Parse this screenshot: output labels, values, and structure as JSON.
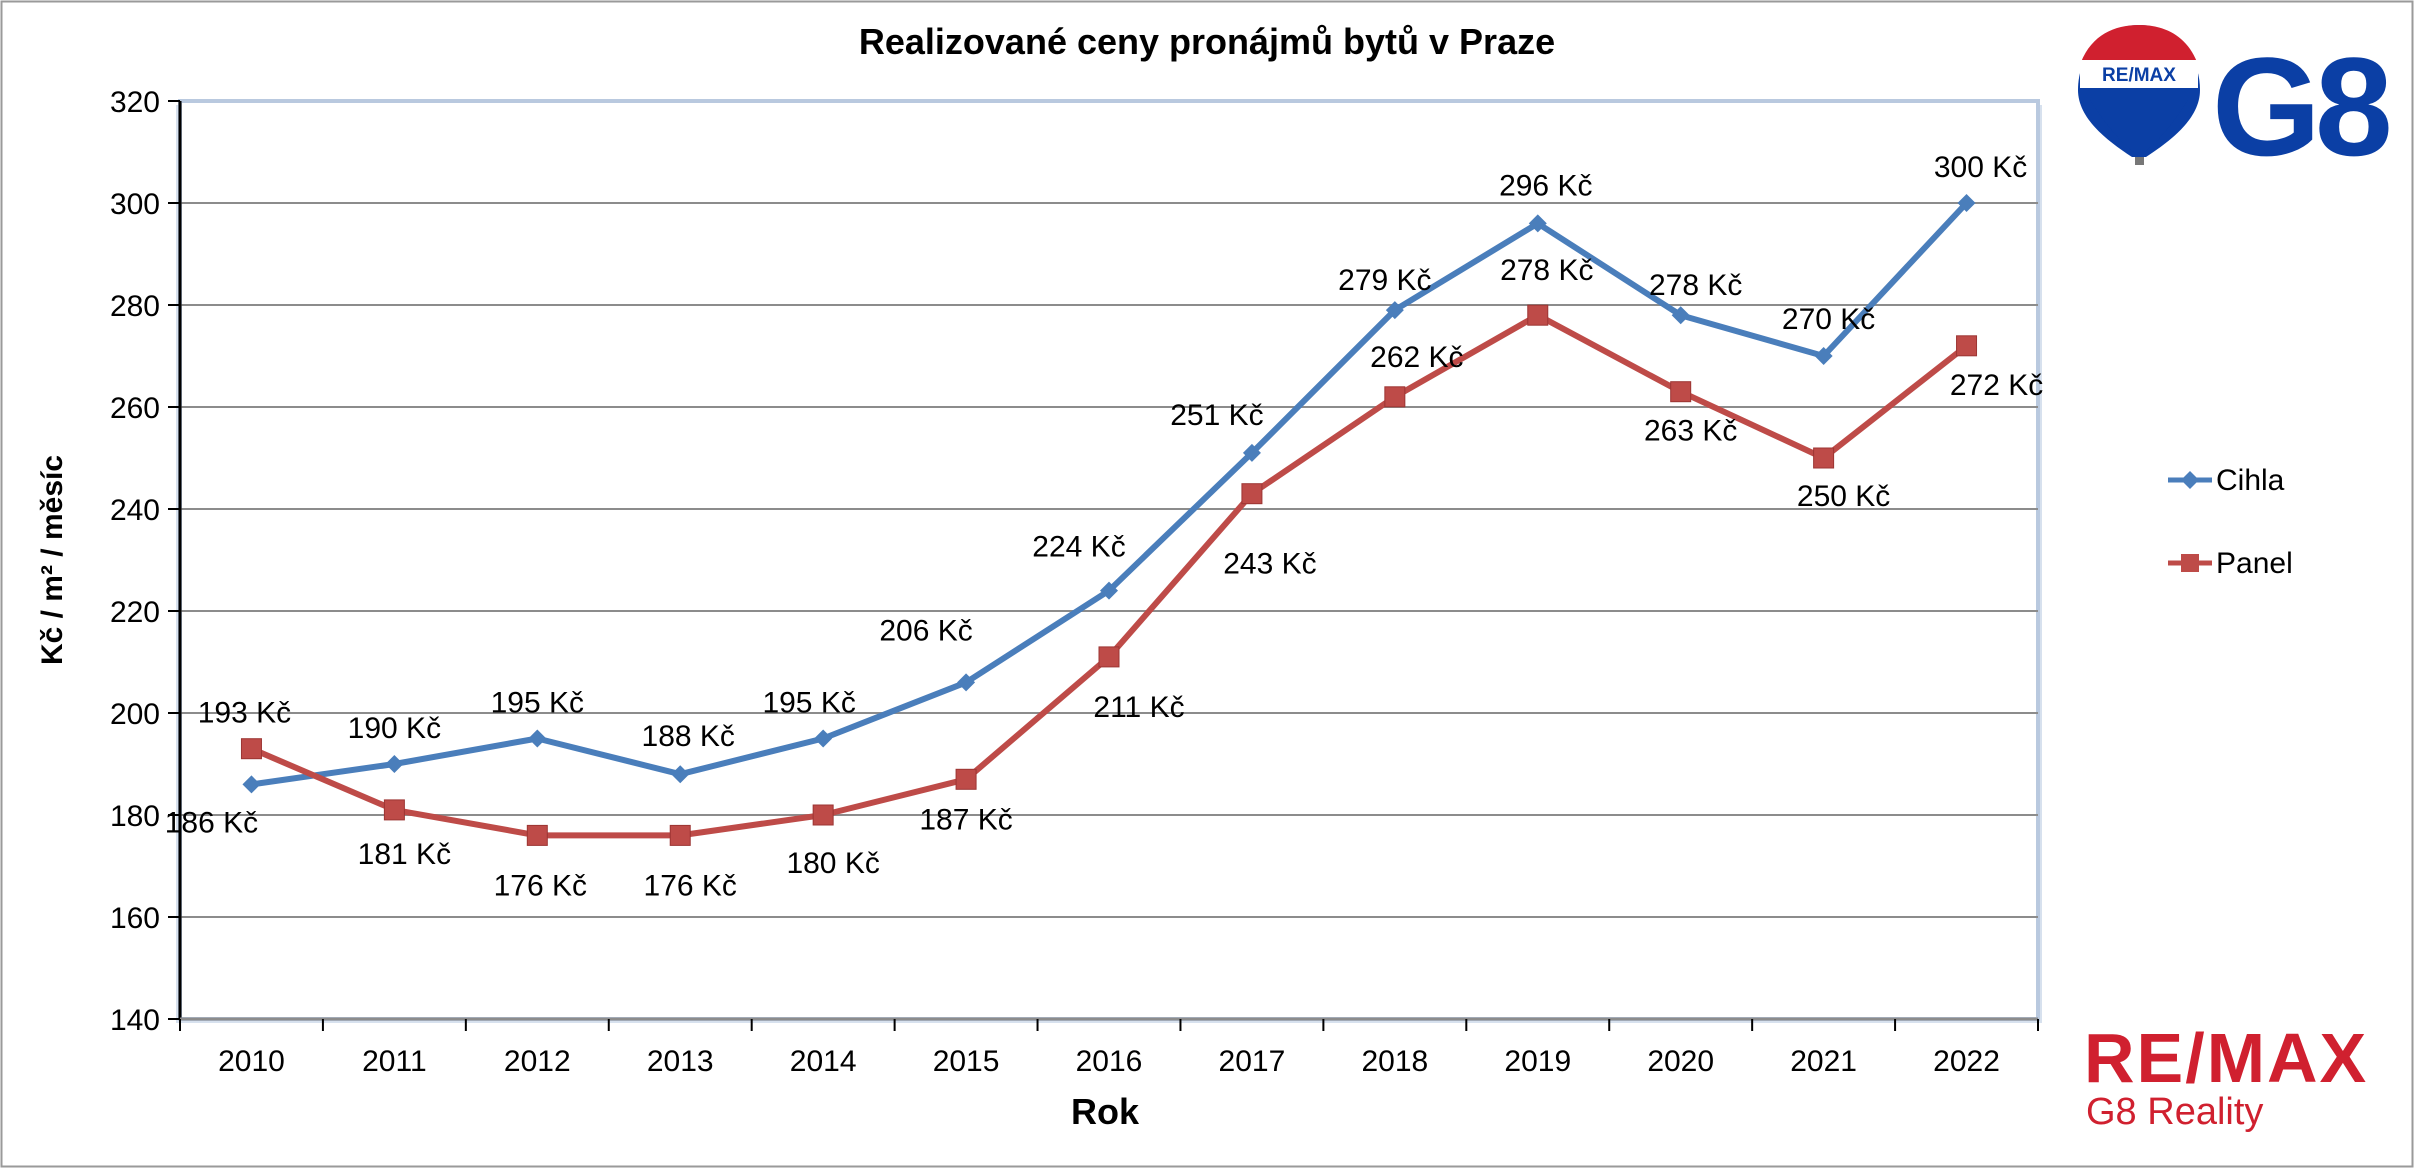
{
  "chart_data": {
    "type": "line",
    "title": "Realizované ceny pronájmů bytů v Praze",
    "xlabel": "Rok",
    "ylabel": "Kč / m² / měsíc",
    "ylim": [
      140,
      320
    ],
    "yticks": [
      140,
      160,
      180,
      200,
      220,
      240,
      260,
      280,
      300,
      320
    ],
    "grid": true,
    "legend_position": "right",
    "x": [
      "2010",
      "2011",
      "2012",
      "2013",
      "2014",
      "2015",
      "2016",
      "2017",
      "2018",
      "2019",
      "2020",
      "2021",
      "2022"
    ],
    "series": [
      {
        "name": "Cihla",
        "color": "#4a7ebb",
        "marker": "diamond",
        "values": [
          186,
          190,
          195,
          188,
          195,
          206,
          224,
          251,
          279,
          296,
          278,
          270,
          300
        ],
        "labels": [
          "186 Kč",
          "190 Kč",
          "195 Kč",
          "188 Kč",
          "195 Kč",
          "206 Kč",
          "224 Kč",
          "251 Kč",
          "279 Kč",
          "296 Kč",
          "278 Kč",
          "270 Kč",
          "300 Kč"
        ]
      },
      {
        "name": "Panel",
        "color": "#be4b48",
        "marker": "square",
        "values": [
          193,
          181,
          176,
          176,
          180,
          187,
          211,
          243,
          262,
          278,
          263,
          250,
          272
        ],
        "labels": [
          "193 Kč",
          "181 Kč",
          "176 Kč",
          "176 Kč",
          "180 Kč",
          "187 Kč",
          "211 Kč",
          "243 Kč",
          "262 Kč",
          "278 Kč",
          "263 Kč",
          "250 Kč",
          "272 Kč"
        ]
      }
    ]
  },
  "logos": {
    "balloon_text": "RE/MAX",
    "g8_text": "G8",
    "brand_text": "RE/MAX",
    "brand_subtitle": "G8 Reality",
    "brand_color": "#d0202f",
    "logo_blue": "#0b3fa5"
  }
}
